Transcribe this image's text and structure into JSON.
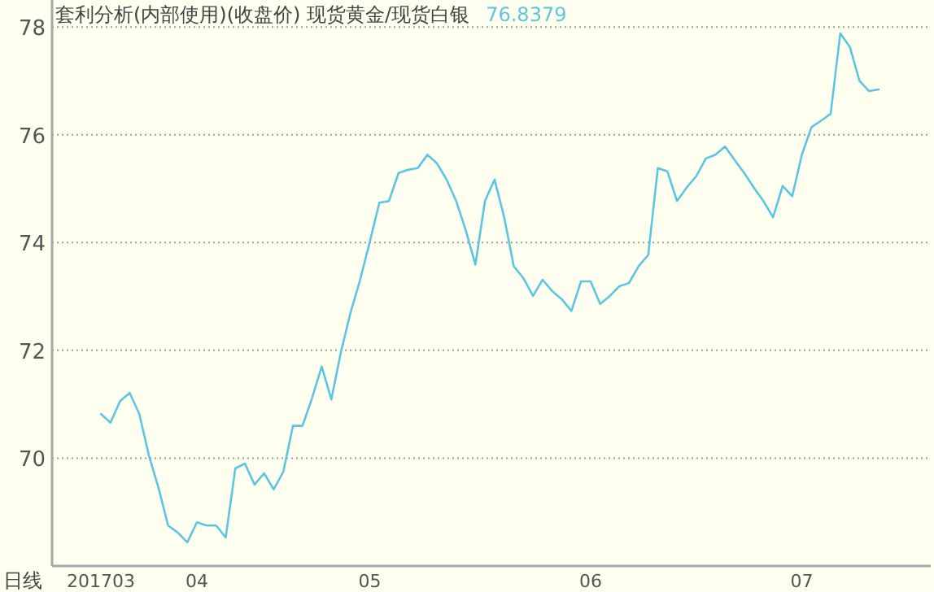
{
  "chart_data": {
    "type": "line",
    "title": "套利分析(内部使用)(收盘价) 现货黄金/现货白银",
    "annotations": [
      "76.8379",
      "日线"
    ],
    "categories": [
      "201703",
      null,
      null,
      null,
      null,
      null,
      null,
      null,
      null,
      null,
      "04",
      null,
      null,
      null,
      null,
      null,
      null,
      null,
      null,
      null,
      null,
      null,
      null,
      null,
      null,
      null,
      null,
      null,
      "05",
      null,
      null,
      null,
      null,
      null,
      null,
      null,
      null,
      null,
      null,
      null,
      null,
      null,
      null,
      null,
      null,
      null,
      null,
      null,
      null,
      null,
      null,
      "06",
      null,
      null,
      null,
      null,
      null,
      null,
      null,
      null,
      null,
      null,
      null,
      null,
      null,
      null,
      null,
      null,
      null,
      null,
      null,
      null,
      null,
      "07",
      null,
      null,
      null,
      null,
      null,
      null,
      null,
      null
    ],
    "series": [
      {
        "color": "#5cc6e2",
        "values": [
          70.82,
          70.66,
          71.06,
          71.21,
          70.82,
          70.05,
          69.45,
          68.75,
          68.62,
          68.44,
          68.81,
          68.75,
          68.75,
          68.53,
          69.81,
          69.9,
          69.51,
          69.72,
          69.42,
          69.75,
          70.6,
          70.6,
          71.12,
          71.7,
          71.09,
          71.97,
          72.7,
          73.31,
          74.01,
          74.74,
          74.77,
          75.29,
          75.35,
          75.38,
          75.63,
          75.47,
          75.17,
          74.77,
          74.23,
          73.59,
          74.77,
          75.17,
          74.47,
          73.56,
          73.34,
          73.01,
          73.31,
          73.1,
          72.95,
          72.73,
          73.28,
          73.28,
          72.86,
          73.01,
          73.19,
          73.25,
          73.56,
          73.77,
          75.38,
          75.32,
          74.77,
          75.02,
          75.23,
          75.56,
          75.63,
          75.78,
          75.53,
          75.29,
          75.02,
          74.77,
          74.47,
          75.05,
          74.86,
          75.63,
          76.14,
          76.26,
          76.39,
          77.88,
          77.63,
          77.0,
          76.81,
          76.84
        ]
      }
    ],
    "ylim": [
      68.0,
      78.5
    ],
    "yticks": [
      70,
      72,
      74,
      76,
      78
    ],
    "grid": "y",
    "line_style": "solid",
    "marker": "none"
  }
}
